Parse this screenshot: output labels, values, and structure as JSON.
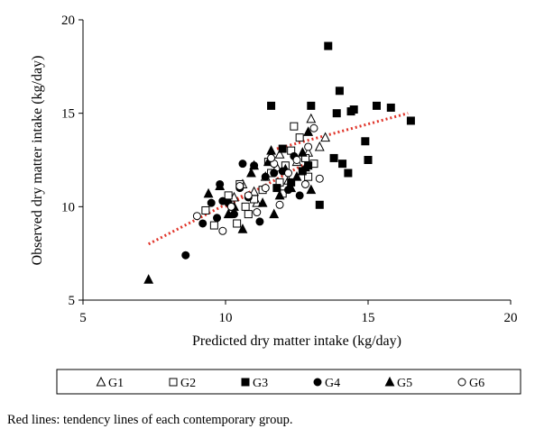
{
  "chart_data": {
    "type": "scatter",
    "xlabel": "Predicted dry matter intake (kg/day)",
    "ylabel": "Observed dry matter intake (kg/day)",
    "xlim": [
      5,
      20
    ],
    "ylim": [
      5,
      20
    ],
    "x_ticks": [
      "5",
      "10",
      "15",
      "20"
    ],
    "y_ticks": [
      "5",
      "10",
      "15",
      "20"
    ],
    "grid": false,
    "legend_position": "bottom",
    "trend_color": "#e0342a",
    "series": [
      {
        "name": "G1",
        "marker": "triangle-open",
        "points": [
          [
            10.3,
            10.5
          ],
          [
            10.6,
            11.2
          ],
          [
            11.0,
            10.8
          ],
          [
            11.4,
            11.6
          ],
          [
            11.8,
            12.1
          ],
          [
            12.2,
            11.4
          ],
          [
            12.5,
            12.4
          ],
          [
            12.9,
            12.9
          ],
          [
            13.0,
            14.7
          ],
          [
            13.3,
            13.2
          ],
          [
            13.5,
            13.7
          ],
          [
            11.9,
            12.8
          ],
          [
            11.1,
            10.2
          ],
          [
            12.7,
            11.9
          ]
        ]
      },
      {
        "name": "G2",
        "marker": "square-open",
        "points": [
          [
            9.3,
            9.8
          ],
          [
            9.6,
            9.0
          ],
          [
            10.1,
            10.6
          ],
          [
            10.5,
            11.2
          ],
          [
            10.8,
            9.6
          ],
          [
            11.0,
            10.4
          ],
          [
            11.3,
            10.9
          ],
          [
            11.6,
            11.8
          ],
          [
            11.9,
            11.3
          ],
          [
            12.1,
            12.2
          ],
          [
            12.3,
            13.0
          ],
          [
            12.4,
            14.3
          ],
          [
            12.6,
            13.7
          ],
          [
            12.8,
            12.6
          ],
          [
            12.9,
            11.6
          ],
          [
            13.1,
            12.3
          ],
          [
            10.4,
            9.1
          ],
          [
            10.7,
            10.0
          ],
          [
            11.5,
            12.4
          ],
          [
            12.0,
            10.7
          ]
        ]
      },
      {
        "name": "G3",
        "marker": "square-filled",
        "points": [
          [
            11.6,
            15.4
          ],
          [
            12.0,
            13.1
          ],
          [
            12.7,
            11.9
          ],
          [
            13.0,
            15.4
          ],
          [
            13.3,
            10.1
          ],
          [
            13.6,
            18.6
          ],
          [
            13.8,
            12.6
          ],
          [
            13.9,
            15.0
          ],
          [
            14.0,
            16.2
          ],
          [
            14.1,
            12.3
          ],
          [
            14.3,
            11.8
          ],
          [
            14.4,
            15.1
          ],
          [
            14.5,
            15.2
          ],
          [
            14.9,
            13.5
          ],
          [
            15.0,
            12.5
          ],
          [
            15.3,
            15.4
          ],
          [
            15.8,
            15.3
          ],
          [
            16.5,
            14.6
          ],
          [
            12.3,
            11.3
          ],
          [
            12.9,
            12.2
          ],
          [
            11.8,
            11.0
          ]
        ]
      },
      {
        "name": "G4",
        "marker": "circle-filled",
        "points": [
          [
            8.6,
            7.4
          ],
          [
            9.2,
            9.1
          ],
          [
            9.5,
            10.2
          ],
          [
            9.7,
            9.4
          ],
          [
            9.8,
            11.2
          ],
          [
            9.9,
            10.3
          ],
          [
            10.1,
            10.2
          ],
          [
            10.3,
            9.6
          ],
          [
            10.5,
            11.0
          ],
          [
            10.6,
            12.3
          ],
          [
            10.8,
            10.5
          ],
          [
            11.0,
            12.2
          ],
          [
            11.2,
            9.2
          ],
          [
            11.4,
            11.6
          ],
          [
            11.7,
            11.8
          ],
          [
            12.0,
            11.9
          ],
          [
            12.2,
            10.9
          ],
          [
            12.4,
            12.7
          ],
          [
            12.6,
            10.6
          ]
        ]
      },
      {
        "name": "G5",
        "marker": "triangle-filled",
        "points": [
          [
            7.3,
            6.1
          ],
          [
            9.4,
            10.7
          ],
          [
            9.8,
            11.1
          ],
          [
            10.1,
            9.6
          ],
          [
            10.3,
            10.0
          ],
          [
            10.6,
            8.8
          ],
          [
            10.9,
            11.8
          ],
          [
            11.0,
            12.2
          ],
          [
            11.3,
            10.2
          ],
          [
            11.5,
            12.4
          ],
          [
            11.7,
            9.6
          ],
          [
            11.9,
            10.6
          ],
          [
            12.1,
            12.0
          ],
          [
            12.3,
            11.0
          ],
          [
            12.5,
            11.6
          ],
          [
            12.7,
            12.9
          ],
          [
            12.9,
            14.0
          ],
          [
            13.0,
            10.9
          ],
          [
            11.6,
            13.0
          ],
          [
            12.8,
            12.1
          ]
        ]
      },
      {
        "name": "G6",
        "marker": "circle-open",
        "points": [
          [
            9.0,
            9.5
          ],
          [
            9.9,
            8.7
          ],
          [
            10.2,
            10.0
          ],
          [
            10.5,
            11.1
          ],
          [
            10.8,
            10.6
          ],
          [
            11.1,
            9.7
          ],
          [
            11.4,
            11.0
          ],
          [
            11.7,
            12.3
          ],
          [
            11.9,
            10.1
          ],
          [
            12.2,
            11.8
          ],
          [
            12.5,
            12.5
          ],
          [
            12.8,
            11.2
          ],
          [
            13.1,
            14.2
          ],
          [
            13.3,
            11.5
          ],
          [
            12.9,
            13.2
          ],
          [
            11.6,
            12.6
          ]
        ]
      }
    ],
    "trend_lines": [
      {
        "x": [
          7.3,
          11.0
        ],
        "y": [
          8.0,
          10.9
        ]
      },
      {
        "x": [
          10.0,
          12.8
        ],
        "y": [
          10.0,
          12.3
        ]
      },
      {
        "x": [
          11.8,
          16.4
        ],
        "y": [
          13.1,
          15.0
        ]
      }
    ]
  },
  "caption": "Red lines: tendency lines of each contemporary group."
}
